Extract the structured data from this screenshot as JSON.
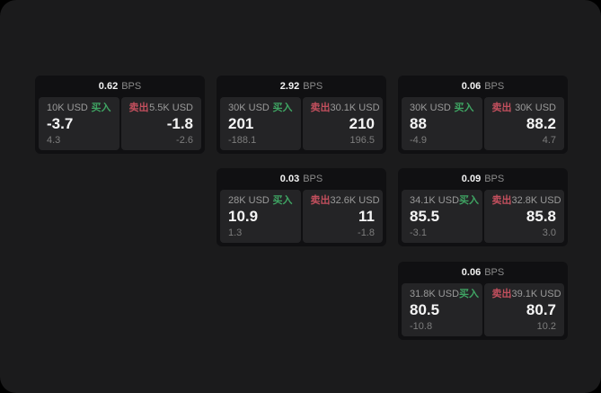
{
  "labels": {
    "buy": "买入",
    "sell": "卖出",
    "bps_unit": "BPS"
  },
  "colors": {
    "buy_green": "#3fa463",
    "sell_red": "#c24f5d",
    "window_bg": "#1b1b1c",
    "card_bg": "#101012",
    "panel_bg": "#242426",
    "value_text": "#f5f5f5",
    "muted_text": "#8b8b8b"
  },
  "cards": [
    {
      "bps": "0.62",
      "buy": {
        "amount": "10K USD",
        "value": "-3.7",
        "delta": "4.3"
      },
      "sell": {
        "amount": "5.5K USD",
        "value": "-1.8",
        "delta": "-2.6"
      }
    },
    {
      "bps": "2.92",
      "buy": {
        "amount": "30K USD",
        "value": "201",
        "delta": "-188.1"
      },
      "sell": {
        "amount": "30.1K USD",
        "value": "210",
        "delta": "196.5"
      }
    },
    {
      "bps": "0.06",
      "buy": {
        "amount": "30K USD",
        "value": "88",
        "delta": "-4.9"
      },
      "sell": {
        "amount": "30K USD",
        "value": "88.2",
        "delta": "4.7"
      }
    },
    {
      "bps": "0.03",
      "buy": {
        "amount": "28K USD",
        "value": "10.9",
        "delta": "1.3"
      },
      "sell": {
        "amount": "32.6K USD",
        "value": "11",
        "delta": "-1.8"
      }
    },
    {
      "bps": "0.09",
      "buy": {
        "amount": "34.1K USD",
        "value": "85.5",
        "delta": "-3.1"
      },
      "sell": {
        "amount": "32.8K USD",
        "value": "85.8",
        "delta": "3.0"
      }
    },
    {
      "bps": "0.06",
      "buy": {
        "amount": "31.8K USD",
        "value": "80.5",
        "delta": "-10.8"
      },
      "sell": {
        "amount": "39.1K USD",
        "value": "80.7",
        "delta": "10.2"
      }
    }
  ]
}
